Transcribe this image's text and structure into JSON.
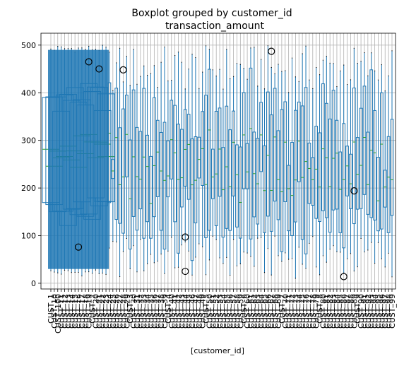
{
  "chart_data": {
    "type": "box",
    "suptitle": "Boxplot grouped by customer_id",
    "title": "transaction_amount",
    "xlabel": "[customer_id]",
    "ylabel": "",
    "ylim": [
      -12,
      525
    ],
    "yticks": [
      0,
      100,
      200,
      300,
      400,
      500
    ],
    "grid": true,
    "categories": [
      "CUST_1",
      "CUST_10",
      "CUST_100",
      "CUST_11",
      "CUST_12",
      "CUST_13",
      "CUST_14",
      "CUST_15",
      "CUST_16",
      "CUST_17",
      "CUST_18",
      "CUST_19",
      "CUST_2",
      "CUST_20",
      "CUST_21",
      "CUST_22",
      "CUST_23",
      "CUST_24",
      "CUST_25",
      "CUST_26",
      "CUST_27",
      "CUST_28",
      "CUST_29",
      "CUST_3",
      "CUST_30",
      "CUST_31",
      "CUST_32",
      "CUST_33",
      "CUST_34",
      "CUST_35",
      "CUST_36",
      "CUST_37",
      "CUST_38",
      "CUST_39",
      "CUST_4",
      "CUST_40",
      "CUST_41",
      "CUST_42",
      "CUST_43",
      "CUST_44",
      "CUST_45",
      "CUST_46",
      "CUST_47",
      "CUST_48",
      "CUST_49",
      "CUST_5",
      "CUST_50",
      "CUST_51",
      "CUST_52",
      "CUST_53",
      "CUST_54",
      "CUST_55",
      "CUST_56",
      "CUST_57",
      "CUST_58",
      "CUST_59",
      "CUST_6",
      "CUST_60",
      "CUST_61",
      "CUST_62",
      "CUST_63",
      "CUST_64",
      "CUST_65",
      "CUST_66",
      "CUST_67",
      "CUST_68",
      "CUST_69",
      "CUST_7",
      "CUST_70",
      "CUST_71",
      "CUST_72",
      "CUST_73",
      "CUST_74",
      "CUST_75",
      "CUST_76",
      "CUST_77",
      "CUST_78",
      "CUST_79",
      "CUST_8",
      "CUST_80",
      "CUST_81",
      "CUST_82",
      "CUST_83",
      "CUST_84",
      "CUST_85",
      "CUST_86",
      "CUST_87",
      "CUST_88",
      "CUST_89",
      "CUST_9",
      "CUST_90",
      "CUST_91",
      "CUST_92",
      "CUST_93",
      "CUST_94",
      "CUST_95",
      "CUST_96",
      "CUST_97",
      "CUST_98",
      "CUST_99"
    ],
    "fliers": [
      {
        "category": "CUST_16",
        "values": [
          76
        ]
      },
      {
        "category": "CUST_19",
        "values": [
          465
        ]
      },
      {
        "category": "CUST_21",
        "values": [
          450
        ]
      },
      {
        "category": "CUST_28",
        "values": [
          448
        ]
      },
      {
        "category": "CUST_44",
        "values": [
          97,
          25
        ]
      },
      {
        "category": "CUST_67",
        "values": [
          487
        ]
      },
      {
        "category": "CUST_86",
        "values": [
          14
        ]
      },
      {
        "category": "CUST_89",
        "values": [
          194
        ]
      }
    ]
  }
}
